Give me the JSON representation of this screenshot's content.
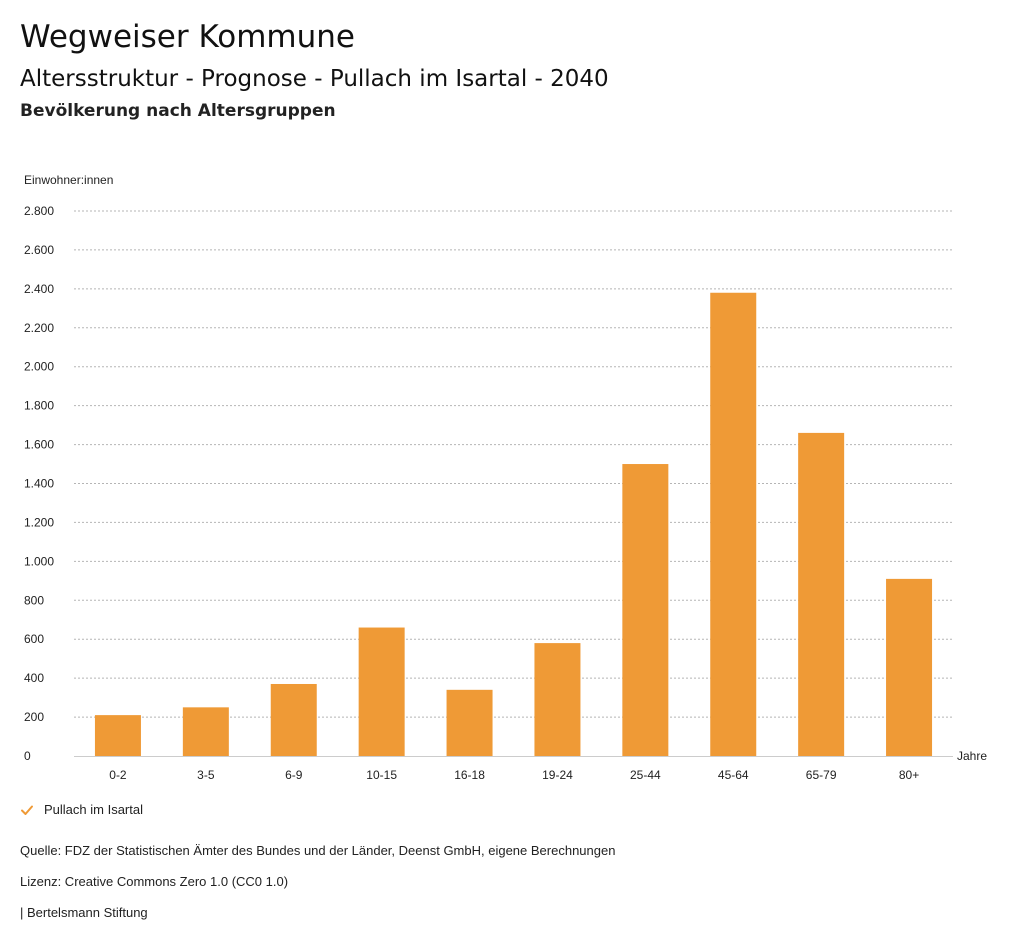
{
  "header": {
    "title": "Wegweiser Kommune",
    "subtitle": "Altersstruktur - Prognose - Pullach im Isartal - 2040",
    "subsubtitle": "Bevölkerung nach Altersgruppen"
  },
  "legend": {
    "label": "Pullach im Isartal"
  },
  "footer": {
    "source": "Quelle: FDZ der Statistischen Ämter des Bundes und der Länder, Deenst GmbH, eigene Berechnungen",
    "license": "Lizenz: Creative Commons Zero 1.0 (CC0 1.0)",
    "brand": "| Bertelsmann Stiftung"
  },
  "colors": {
    "bar": "#ef9a36",
    "grid": "#b5b5b5",
    "check": "#ef9a36"
  },
  "chart_data": {
    "type": "bar",
    "title": "Bevölkerung nach Altersgruppen",
    "ylabel": "Einwohner:innen",
    "xlabel": "Jahre",
    "ylim": [
      0,
      2800
    ],
    "yticks": [
      0,
      200,
      400,
      600,
      800,
      1000,
      1200,
      1400,
      1600,
      1800,
      2000,
      2200,
      2400,
      2600,
      2800
    ],
    "ytick_labels": [
      "0",
      "200",
      "400",
      "600",
      "800",
      "1.000",
      "1.200",
      "1.400",
      "1.600",
      "1.800",
      "2.000",
      "2.200",
      "2.400",
      "2.600",
      "2.800"
    ],
    "categories": [
      "0-2",
      "3-5",
      "6-9",
      "10-15",
      "16-18",
      "19-24",
      "25-44",
      "45-64",
      "65-79",
      "80+"
    ],
    "series": [
      {
        "name": "Pullach im Isartal",
        "values": [
          210,
          250,
          370,
          660,
          340,
          580,
          1500,
          2380,
          1660,
          910
        ]
      }
    ],
    "grid": true,
    "legend_position": "bottom-left"
  }
}
